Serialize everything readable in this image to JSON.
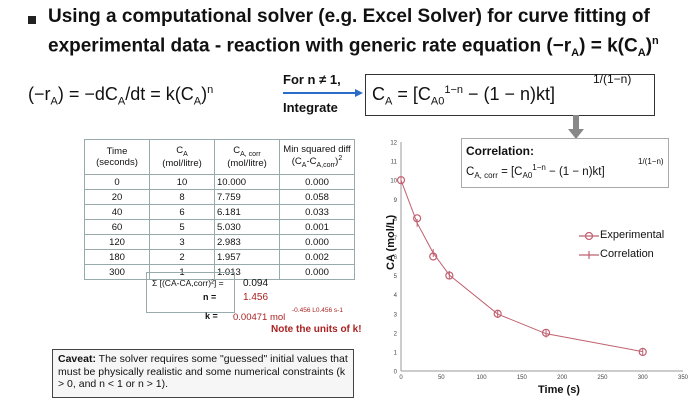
{
  "header": {
    "line1": "Using a computational solver (e.g. Excel Solver) for curve fitting of",
    "line2": "experimental data - reaction with generic rate equation (−r",
    "line2_sub": "A",
    "line2_end": ") = k(C",
    "line2_sub2": "A",
    "line2_end2": ")",
    "line2_sup": "n"
  },
  "equation": {
    "left_a": "(−r",
    "left_sub1": "A",
    "left_b": ") = −dC",
    "left_sub2": "A",
    "left_c": "/dt = k(C",
    "left_sub3": "A",
    "left_d": ")",
    "left_sup": "n",
    "condition": "For n ≠ 1,",
    "integrate": "Integrate",
    "right_a": "C",
    "right_sub1": "A",
    "right_b": " = [C",
    "right_sub2": "A0",
    "right_sup1": "1−n",
    "right_c": " − (1 − n)kt]",
    "right_exp": "1/(1−n)"
  },
  "table": {
    "headers": [
      "Time (seconds)",
      "CA (mol/litre)",
      "CA, corr (mol/litre)",
      "Min squared diff (CA-CA,corr)²"
    ],
    "rows": [
      [
        "0",
        "10",
        "10.000",
        "0.000"
      ],
      [
        "20",
        "8",
        "7.759",
        "0.058"
      ],
      [
        "40",
        "6",
        "6.181",
        "0.033"
      ],
      [
        "60",
        "5",
        "5.030",
        "0.001"
      ],
      [
        "120",
        "3",
        "2.983",
        "0.000"
      ],
      [
        "180",
        "2",
        "1.957",
        "0.002"
      ],
      [
        "300",
        "1",
        "1.013",
        "0.000"
      ]
    ],
    "sum_label": "Σ [(CA-CA,corr)²] =",
    "sum_value": "0.094",
    "n_label": "n =",
    "n_value": "1.456",
    "k_label": "k =",
    "k_value": "0.00471 mol",
    "k_units": "-0.456 L0.456 s-1",
    "note": "Note the units of k!"
  },
  "caveat": {
    "bold": "Caveat:",
    "text": " The solver requires some \"guessed\" initial values that must be physically realistic and some numerical constraints (k > 0, and n < 1 or n > 1)."
  },
  "correlation": {
    "title": "Correlation:",
    "eq_a": "C",
    "eq_sub": "A, corr",
    "eq_b": " = [C",
    "eq_sub2": "A0",
    "eq_sup": "1−n",
    "eq_c": " − (1 − n)kt]",
    "eq_exp": "1/(1−n)"
  },
  "legend": {
    "experimental": "Experimental",
    "correlation": "Correlation"
  },
  "chart_data": {
    "type": "line",
    "xlabel": "Time (s)",
    "ylabel": "CA (mol/L)",
    "xlim": [
      0,
      350
    ],
    "ylim": [
      0,
      12
    ],
    "x_ticks": [
      "0",
      "50",
      "100",
      "150",
      "200",
      "250",
      "300",
      "350"
    ],
    "y_ticks": [
      "0",
      "1",
      "2",
      "3",
      "4",
      "5",
      "6",
      "7",
      "8",
      "9",
      "10",
      "11",
      "12"
    ],
    "series": [
      {
        "name": "Experimental",
        "x": [
          0,
          20,
          40,
          60,
          120,
          180,
          300
        ],
        "y": [
          10,
          8,
          6,
          5,
          3,
          2,
          1
        ]
      },
      {
        "name": "Correlation",
        "x": [
          0,
          20,
          40,
          60,
          120,
          180,
          300
        ],
        "y": [
          10.0,
          7.759,
          6.181,
          5.03,
          2.983,
          1.957,
          1.013
        ]
      }
    ],
    "colors": {
      "experimental": "#c06070",
      "correlation": "#c06070"
    },
    "grid": false
  }
}
